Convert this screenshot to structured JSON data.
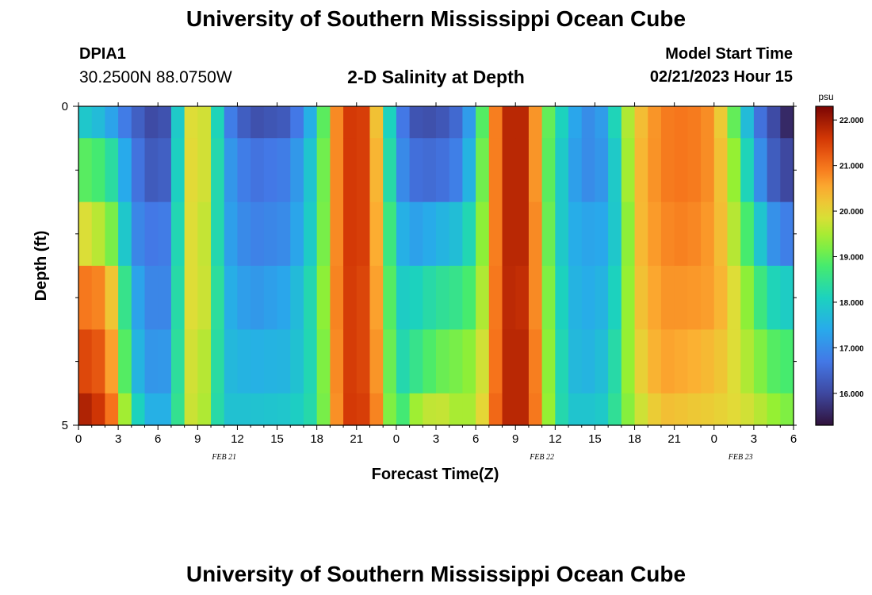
{
  "header": {
    "title": "University of Southern Mississippi Ocean Cube",
    "station_id": "DPIA1",
    "station_coords": "30.2500N  88.0750W",
    "subtitle": "2-D Salinity at Depth",
    "model_start_label": "Model Start Time",
    "model_start_value": "02/21/2023 Hour 15"
  },
  "footer": {
    "title": "University of Southern Mississippi Ocean Cube"
  },
  "chart_data": {
    "type": "heatmap",
    "title": "2-D Salinity at Depth",
    "xlabel": "Forecast Time(Z)",
    "ylabel": "Depth (ft)",
    "ylim": [
      0,
      5
    ],
    "y_tick_labels": [
      "0",
      "5"
    ],
    "x_tick_labels": [
      "0",
      "3",
      "6",
      "9",
      "12",
      "15",
      "18",
      "21",
      "0",
      "3",
      "6",
      "9",
      "12",
      "15",
      "18",
      "21",
      "0",
      "3",
      "6"
    ],
    "date_labels": [
      {
        "label": "FEB 21",
        "hour_index": 11
      },
      {
        "label": "FEB 22",
        "hour_index": 35
      },
      {
        "label": "FEB 23",
        "hour_index": 50
      }
    ],
    "colorbar": {
      "unit": "psu",
      "min": 15.3,
      "max": 22.3,
      "ticks": [
        "22.000",
        "21.000",
        "20.000",
        "19.000",
        "18.000",
        "17.000",
        "16.000"
      ],
      "tick_values": [
        22,
        21,
        20,
        19,
        18,
        17,
        16
      ]
    },
    "hours_total": 54,
    "depth_layers": [
      "0-0.5 ft",
      "0.5-1.5 ft",
      "1.5-2.5 ft",
      "2.5-3.5 ft",
      "3.5-4.5 ft",
      "4.5-5 ft"
    ],
    "layer_bounds": [
      0,
      0.5,
      1.5,
      2.5,
      3.5,
      4.5,
      5
    ],
    "profiles": [
      {
        "hour": 0,
        "values": [
          18.0,
          19.0,
          20.0,
          21.0,
          21.5,
          22.0
        ]
      },
      {
        "hour": 2,
        "values": [
          17.6,
          18.7,
          19.5,
          20.8,
          21.2,
          21.5
        ]
      },
      {
        "hour": 3,
        "values": [
          17.0,
          18.0,
          18.8,
          19.6,
          20.0,
          20.5
        ]
      },
      {
        "hour": 4,
        "values": [
          16.5,
          16.8,
          17.0,
          17.5,
          17.8,
          18.4
        ]
      },
      {
        "hour": 6,
        "values": [
          15.9,
          16.1,
          16.6,
          16.7,
          16.9,
          17.2
        ]
      },
      {
        "hour": 7,
        "values": [
          16.4,
          16.6,
          16.9,
          17.1,
          17.4,
          17.8
        ]
      },
      {
        "hour": 8,
        "values": [
          19.5,
          19.5,
          19.5,
          19.5,
          19.4,
          19.2
        ]
      },
      {
        "hour": 9,
        "values": [
          20.3,
          20.4,
          20.3,
          20.3,
          20.2,
          20.3
        ]
      },
      {
        "hour": 10,
        "values": [
          19.3,
          19.2,
          19.1,
          19.2,
          19.0,
          18.8
        ]
      },
      {
        "hour": 11,
        "values": [
          17.0,
          17.3,
          17.4,
          17.6,
          17.7,
          17.8
        ]
      },
      {
        "hour": 13,
        "values": [
          16.1,
          16.6,
          16.8,
          17.1,
          17.5,
          17.8
        ]
      },
      {
        "hour": 16,
        "values": [
          16.3,
          16.8,
          17.0,
          17.4,
          17.6,
          17.9
        ]
      },
      {
        "hour": 18,
        "values": [
          17.9,
          18.2,
          18.3,
          18.5,
          18.4,
          18.4
        ]
      },
      {
        "hour": 19,
        "values": [
          20.0,
          20.0,
          20.0,
          20.1,
          20.0,
          19.9
        ]
      },
      {
        "hour": 20,
        "values": [
          21.6,
          21.6,
          21.6,
          21.6,
          21.6,
          21.6
        ]
      },
      {
        "hour": 22,
        "values": [
          21.5,
          21.5,
          21.5,
          21.4,
          21.4,
          21.5
        ]
      },
      {
        "hour": 23,
        "values": [
          19.0,
          19.3,
          19.5,
          19.8,
          20.0,
          20.2
        ]
      },
      {
        "hour": 24,
        "values": [
          17.2,
          17.3,
          17.8,
          18.0,
          18.1,
          18.2
        ]
      },
      {
        "hour": 25,
        "values": [
          16.2,
          16.6,
          17.2,
          18.0,
          18.4,
          19.3
        ]
      },
      {
        "hour": 27,
        "values": [
          16.1,
          16.5,
          17.5,
          18.4,
          19.0,
          19.8
        ]
      },
      {
        "hour": 29,
        "values": [
          16.6,
          16.9,
          17.8,
          18.6,
          19.2,
          19.4
        ]
      },
      {
        "hour": 30,
        "values": [
          17.8,
          18.2,
          18.6,
          19.0,
          19.4,
          19.6
        ]
      },
      {
        "hour": 31,
        "values": [
          20.0,
          20.0,
          20.0,
          20.1,
          20.2,
          20.4
        ]
      },
      {
        "hour": 32,
        "values": [
          21.8,
          21.8,
          21.8,
          21.8,
          21.8,
          21.8
        ]
      },
      {
        "hour": 34,
        "values": [
          21.8,
          21.8,
          21.8,
          21.7,
          21.8,
          21.8
        ]
      },
      {
        "hour": 35,
        "values": [
          19.6,
          19.6,
          19.8,
          19.9,
          20.0,
          20.1
        ]
      },
      {
        "hour": 36,
        "values": [
          18.4,
          18.3,
          18.3,
          18.5,
          18.6,
          18.6
        ]
      },
      {
        "hour": 37,
        "values": [
          17.8,
          17.6,
          17.6,
          17.7,
          17.8,
          17.9
        ]
      },
      {
        "hour": 38,
        "values": [
          16.9,
          16.9,
          17.3,
          17.4,
          17.5,
          17.8
        ]
      },
      {
        "hour": 40,
        "values": [
          17.3,
          17.2,
          17.4,
          17.6,
          17.8,
          18.0
        ]
      },
      {
        "hour": 41,
        "values": [
          19.0,
          18.7,
          18.4,
          18.6,
          18.8,
          18.9
        ]
      },
      {
        "hour": 42,
        "values": [
          20.1,
          20.2,
          20.2,
          20.1,
          19.9,
          19.6
        ]
      },
      {
        "hour": 44,
        "values": [
          20.9,
          20.9,
          20.8,
          20.7,
          20.6,
          20.3
        ]
      },
      {
        "hour": 46,
        "values": [
          21.0,
          21.0,
          20.9,
          20.7,
          20.5,
          20.2
        ]
      },
      {
        "hour": 48,
        "values": [
          20.7,
          20.7,
          20.6,
          20.6,
          20.3,
          20.1
        ]
      },
      {
        "hour": 49,
        "values": [
          19.6,
          19.8,
          20.0,
          20.2,
          20.1,
          20.0
        ]
      },
      {
        "hour": 50,
        "values": [
          18.4,
          18.9,
          19.2,
          19.6,
          19.7,
          19.9
        ]
      },
      {
        "hour": 51,
        "values": [
          17.0,
          17.4,
          18.4,
          19.0,
          19.4,
          19.7
        ]
      },
      {
        "hour": 52,
        "values": [
          16.2,
          16.6,
          17.3,
          18.3,
          19.0,
          19.5
        ]
      },
      {
        "hour": 53,
        "values": [
          15.9,
          16.0,
          16.8,
          18.0,
          18.8,
          19.2
        ]
      },
      {
        "hour": 54,
        "values": [
          15.3,
          16.0,
          16.8,
          18.0,
          18.8,
          19.2
        ]
      }
    ]
  }
}
